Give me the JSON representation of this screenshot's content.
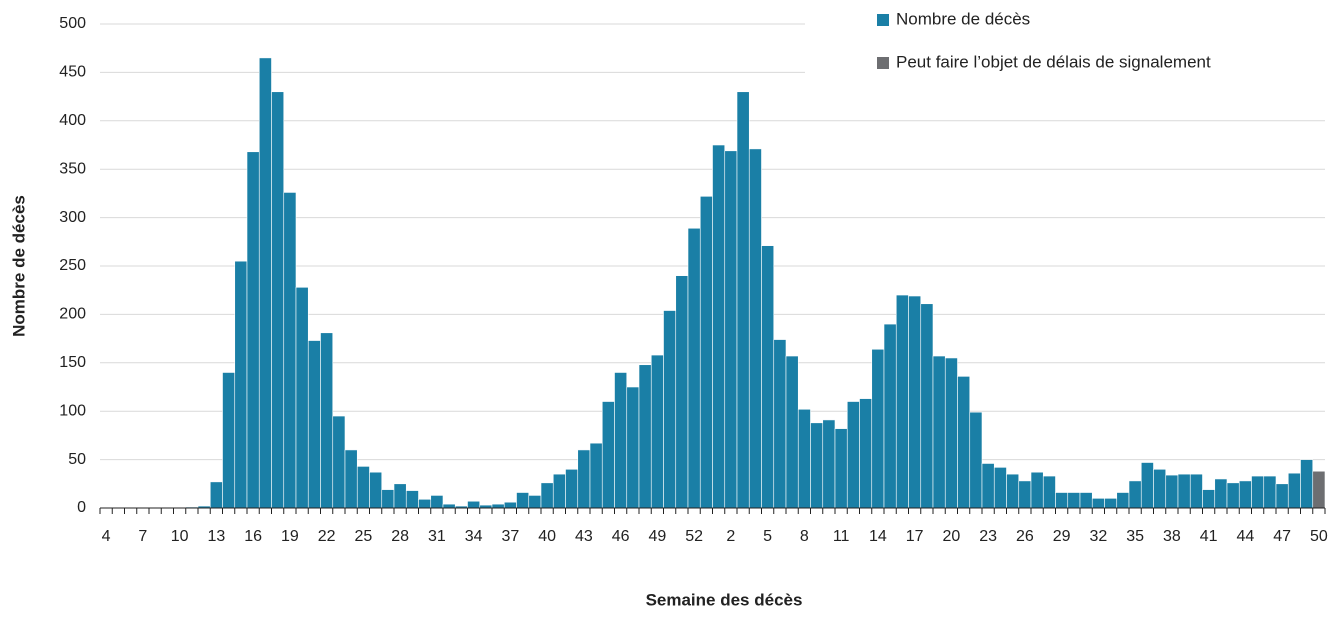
{
  "chart_data": {
    "type": "bar",
    "x_label": "Semaine des décès",
    "y_label": "Nombre de décès",
    "categories": [
      "4",
      null,
      null,
      "7",
      null,
      null,
      "10",
      null,
      null,
      "13",
      null,
      null,
      "16",
      null,
      null,
      "19",
      null,
      null,
      "22",
      null,
      null,
      "25",
      null,
      null,
      "28",
      null,
      null,
      "31",
      null,
      null,
      "34",
      null,
      null,
      "37",
      null,
      null,
      "40",
      null,
      null,
      "43",
      null,
      null,
      "46",
      null,
      null,
      "49",
      null,
      null,
      "52",
      null,
      null,
      "2",
      null,
      null,
      "5",
      null,
      null,
      "8",
      null,
      null,
      "11",
      null,
      null,
      "14",
      null,
      null,
      "17",
      null,
      null,
      "20",
      null,
      null,
      "23",
      null,
      null,
      "26",
      null,
      null,
      "29",
      null,
      null,
      "32",
      null,
      null,
      "35",
      null,
      null,
      "38",
      null,
      null,
      "41",
      null,
      null,
      "44",
      null,
      null,
      "47",
      null,
      null,
      "50"
    ],
    "series": [
      {
        "name": "Nombre de décès",
        "color": "#1a7fa6",
        "values": [
          0,
          0,
          0,
          0,
          0,
          0,
          0,
          1,
          2,
          27,
          140,
          255,
          368,
          465,
          430,
          326,
          228,
          173,
          181,
          95,
          60,
          43,
          37,
          19,
          25,
          18,
          9,
          13,
          4,
          2,
          7,
          3,
          4,
          6,
          16,
          13,
          26,
          35,
          40,
          60,
          67,
          110,
          140,
          125,
          148,
          158,
          204,
          240,
          289,
          322,
          375,
          369,
          430,
          371,
          271,
          174,
          157,
          102,
          88,
          91,
          82,
          110,
          113,
          164,
          190,
          220,
          219,
          211,
          157,
          155,
          136,
          99,
          46,
          42,
          35,
          28,
          37,
          33,
          16,
          16,
          16,
          10,
          10,
          16,
          28,
          47,
          40,
          34,
          35,
          35,
          19,
          30,
          26,
          28,
          33,
          33,
          25,
          36,
          50,
          null
        ]
      },
      {
        "name": "Peut faire l’objet de délais de signalement",
        "color": "#6d6e71",
        "values": [
          null,
          null,
          null,
          null,
          null,
          null,
          null,
          null,
          null,
          null,
          null,
          null,
          null,
          null,
          null,
          null,
          null,
          null,
          null,
          null,
          null,
          null,
          null,
          null,
          null,
          null,
          null,
          null,
          null,
          null,
          null,
          null,
          null,
          null,
          null,
          null,
          null,
          null,
          null,
          null,
          null,
          null,
          null,
          null,
          null,
          null,
          null,
          null,
          null,
          null,
          null,
          null,
          null,
          null,
          null,
          null,
          null,
          null,
          null,
          null,
          null,
          null,
          null,
          null,
          null,
          null,
          null,
          null,
          null,
          null,
          null,
          null,
          null,
          null,
          null,
          null,
          null,
          null,
          null,
          null,
          null,
          null,
          null,
          null,
          null,
          null,
          null,
          null,
          null,
          null,
          null,
          null,
          null,
          null,
          null,
          null,
          null,
          null,
          null,
          38
        ]
      }
    ],
    "ylim": [
      0,
      500
    ],
    "yticks": [
      0,
      50,
      100,
      150,
      200,
      250,
      300,
      350,
      400,
      450,
      500
    ],
    "grid": true
  }
}
